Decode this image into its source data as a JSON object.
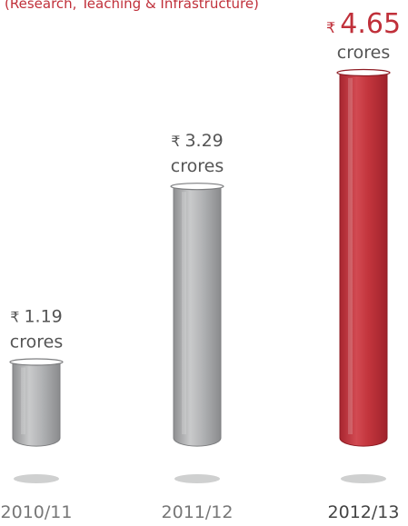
{
  "subtitle": "(Research, Teaching & Infrastructure)",
  "colors": {
    "grey_tube": "#a8a9ab",
    "red_tube": "#c3353d",
    "subtitle": "#c0303a",
    "shadow": "#cfd0d0"
  },
  "chart_data": {
    "type": "bar",
    "style": "test-tube",
    "categories": [
      "2010/11",
      "2011/12",
      "2012/13"
    ],
    "values": [
      1.19,
      3.29,
      4.65
    ],
    "currency_symbol": "₹",
    "unit": "crores",
    "highlight": "2012/13",
    "value_labels": [
      "1.19",
      "3.29",
      "4.65"
    ],
    "ylim": [
      0,
      4.65
    ]
  }
}
